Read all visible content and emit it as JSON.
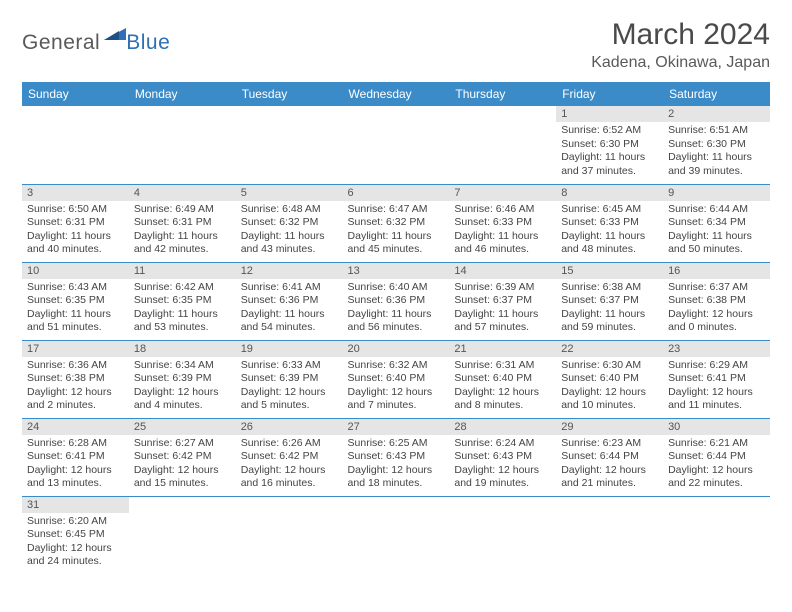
{
  "logo": {
    "general": "General",
    "blue": "Blue"
  },
  "title": "March 2024",
  "location": "Kadena, Okinawa, Japan",
  "colors": {
    "header_bg": "#3b8bc9",
    "header_fg": "#ffffff",
    "daynum_bg": "#e5e5e5",
    "row_divider": "#3b8bc9",
    "logo_general": "#5a5a5a",
    "logo_blue": "#2e6fb5"
  },
  "weekdays": [
    "Sunday",
    "Monday",
    "Tuesday",
    "Wednesday",
    "Thursday",
    "Friday",
    "Saturday"
  ],
  "layout": {
    "first_blank_cells": 5,
    "rows": 6,
    "cols": 7
  },
  "days": {
    "1": {
      "sunrise": "Sunrise: 6:52 AM",
      "sunset": "Sunset: 6:30 PM",
      "daylight": "Daylight: 11 hours and 37 minutes."
    },
    "2": {
      "sunrise": "Sunrise: 6:51 AM",
      "sunset": "Sunset: 6:30 PM",
      "daylight": "Daylight: 11 hours and 39 minutes."
    },
    "3": {
      "sunrise": "Sunrise: 6:50 AM",
      "sunset": "Sunset: 6:31 PM",
      "daylight": "Daylight: 11 hours and 40 minutes."
    },
    "4": {
      "sunrise": "Sunrise: 6:49 AM",
      "sunset": "Sunset: 6:31 PM",
      "daylight": "Daylight: 11 hours and 42 minutes."
    },
    "5": {
      "sunrise": "Sunrise: 6:48 AM",
      "sunset": "Sunset: 6:32 PM",
      "daylight": "Daylight: 11 hours and 43 minutes."
    },
    "6": {
      "sunrise": "Sunrise: 6:47 AM",
      "sunset": "Sunset: 6:32 PM",
      "daylight": "Daylight: 11 hours and 45 minutes."
    },
    "7": {
      "sunrise": "Sunrise: 6:46 AM",
      "sunset": "Sunset: 6:33 PM",
      "daylight": "Daylight: 11 hours and 46 minutes."
    },
    "8": {
      "sunrise": "Sunrise: 6:45 AM",
      "sunset": "Sunset: 6:33 PM",
      "daylight": "Daylight: 11 hours and 48 minutes."
    },
    "9": {
      "sunrise": "Sunrise: 6:44 AM",
      "sunset": "Sunset: 6:34 PM",
      "daylight": "Daylight: 11 hours and 50 minutes."
    },
    "10": {
      "sunrise": "Sunrise: 6:43 AM",
      "sunset": "Sunset: 6:35 PM",
      "daylight": "Daylight: 11 hours and 51 minutes."
    },
    "11": {
      "sunrise": "Sunrise: 6:42 AM",
      "sunset": "Sunset: 6:35 PM",
      "daylight": "Daylight: 11 hours and 53 minutes."
    },
    "12": {
      "sunrise": "Sunrise: 6:41 AM",
      "sunset": "Sunset: 6:36 PM",
      "daylight": "Daylight: 11 hours and 54 minutes."
    },
    "13": {
      "sunrise": "Sunrise: 6:40 AM",
      "sunset": "Sunset: 6:36 PM",
      "daylight": "Daylight: 11 hours and 56 minutes."
    },
    "14": {
      "sunrise": "Sunrise: 6:39 AM",
      "sunset": "Sunset: 6:37 PM",
      "daylight": "Daylight: 11 hours and 57 minutes."
    },
    "15": {
      "sunrise": "Sunrise: 6:38 AM",
      "sunset": "Sunset: 6:37 PM",
      "daylight": "Daylight: 11 hours and 59 minutes."
    },
    "16": {
      "sunrise": "Sunrise: 6:37 AM",
      "sunset": "Sunset: 6:38 PM",
      "daylight": "Daylight: 12 hours and 0 minutes."
    },
    "17": {
      "sunrise": "Sunrise: 6:36 AM",
      "sunset": "Sunset: 6:38 PM",
      "daylight": "Daylight: 12 hours and 2 minutes."
    },
    "18": {
      "sunrise": "Sunrise: 6:34 AM",
      "sunset": "Sunset: 6:39 PM",
      "daylight": "Daylight: 12 hours and 4 minutes."
    },
    "19": {
      "sunrise": "Sunrise: 6:33 AM",
      "sunset": "Sunset: 6:39 PM",
      "daylight": "Daylight: 12 hours and 5 minutes."
    },
    "20": {
      "sunrise": "Sunrise: 6:32 AM",
      "sunset": "Sunset: 6:40 PM",
      "daylight": "Daylight: 12 hours and 7 minutes."
    },
    "21": {
      "sunrise": "Sunrise: 6:31 AM",
      "sunset": "Sunset: 6:40 PM",
      "daylight": "Daylight: 12 hours and 8 minutes."
    },
    "22": {
      "sunrise": "Sunrise: 6:30 AM",
      "sunset": "Sunset: 6:40 PM",
      "daylight": "Daylight: 12 hours and 10 minutes."
    },
    "23": {
      "sunrise": "Sunrise: 6:29 AM",
      "sunset": "Sunset: 6:41 PM",
      "daylight": "Daylight: 12 hours and 11 minutes."
    },
    "24": {
      "sunrise": "Sunrise: 6:28 AM",
      "sunset": "Sunset: 6:41 PM",
      "daylight": "Daylight: 12 hours and 13 minutes."
    },
    "25": {
      "sunrise": "Sunrise: 6:27 AM",
      "sunset": "Sunset: 6:42 PM",
      "daylight": "Daylight: 12 hours and 15 minutes."
    },
    "26": {
      "sunrise": "Sunrise: 6:26 AM",
      "sunset": "Sunset: 6:42 PM",
      "daylight": "Daylight: 12 hours and 16 minutes."
    },
    "27": {
      "sunrise": "Sunrise: 6:25 AM",
      "sunset": "Sunset: 6:43 PM",
      "daylight": "Daylight: 12 hours and 18 minutes."
    },
    "28": {
      "sunrise": "Sunrise: 6:24 AM",
      "sunset": "Sunset: 6:43 PM",
      "daylight": "Daylight: 12 hours and 19 minutes."
    },
    "29": {
      "sunrise": "Sunrise: 6:23 AM",
      "sunset": "Sunset: 6:44 PM",
      "daylight": "Daylight: 12 hours and 21 minutes."
    },
    "30": {
      "sunrise": "Sunrise: 6:21 AM",
      "sunset": "Sunset: 6:44 PM",
      "daylight": "Daylight: 12 hours and 22 minutes."
    },
    "31": {
      "sunrise": "Sunrise: 6:20 AM",
      "sunset": "Sunset: 6:45 PM",
      "daylight": "Daylight: 12 hours and 24 minutes."
    }
  }
}
